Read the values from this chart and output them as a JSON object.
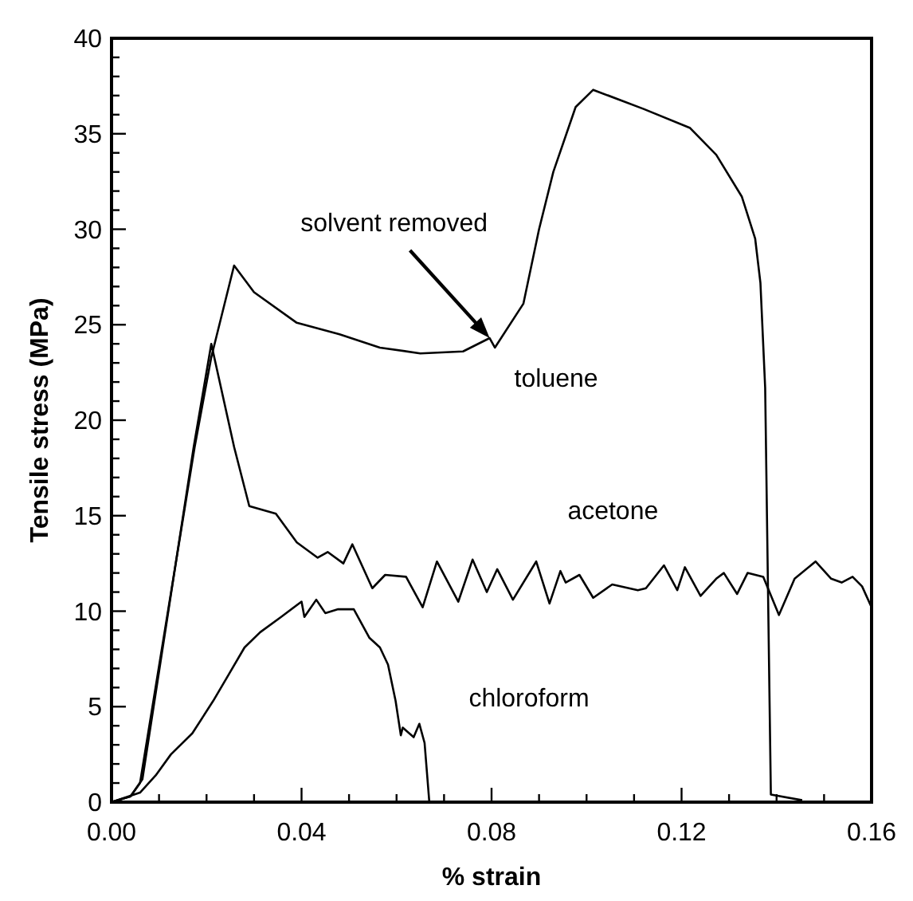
{
  "chart_data": {
    "type": "line",
    "xlabel": "% strain",
    "ylabel": "Tensile stress (MPa)",
    "xlim": [
      0,
      0.16
    ],
    "ylim": [
      0,
      40
    ],
    "xticks": [
      {
        "value": 0,
        "label": "0.00"
      },
      {
        "value": 0.01,
        "label": null
      },
      {
        "value": 0.02,
        "label": null
      },
      {
        "value": 0.03,
        "label": null
      },
      {
        "value": 0.04,
        "label": "0.04"
      },
      {
        "value": 0.05,
        "label": null
      },
      {
        "value": 0.06,
        "label": null
      },
      {
        "value": 0.07,
        "label": null
      },
      {
        "value": 0.08,
        "label": "0.08"
      },
      {
        "value": 0.09,
        "label": null
      },
      {
        "value": 0.1,
        "label": null
      },
      {
        "value": 0.11,
        "label": null
      },
      {
        "value": 0.12,
        "label": "0.12"
      },
      {
        "value": 0.13,
        "label": null
      },
      {
        "value": 0.14,
        "label": null
      },
      {
        "value": 0.15,
        "label": null
      },
      {
        "value": 0.16,
        "label": "0.16"
      }
    ],
    "yticks": [
      0,
      {
        "value": 1,
        "label": null
      },
      {
        "value": 2,
        "label": null
      },
      {
        "value": 3,
        "label": null
      },
      {
        "value": 4,
        "label": null
      },
      5,
      {
        "value": 6,
        "label": null
      },
      {
        "value": 7,
        "label": null
      },
      {
        "value": 8,
        "label": null
      },
      {
        "value": 9,
        "label": null
      },
      10,
      {
        "value": 11,
        "label": null
      },
      {
        "value": 12,
        "label": null
      },
      {
        "value": 13,
        "label": null
      },
      {
        "value": 14,
        "label": null
      },
      15,
      {
        "value": 16,
        "label": null
      },
      {
        "value": 17,
        "label": null
      },
      {
        "value": 18,
        "label": null
      },
      {
        "value": 19,
        "label": null
      },
      20,
      {
        "value": 21,
        "label": null
      },
      {
        "value": 22,
        "label": null
      },
      {
        "value": 23,
        "label": null
      },
      {
        "value": 24,
        "label": null
      },
      25,
      {
        "value": 26,
        "label": null
      },
      {
        "value": 27,
        "label": null
      },
      {
        "value": 28,
        "label": null
      },
      {
        "value": 29,
        "label": null
      },
      30,
      {
        "value": 31,
        "label": null
      },
      {
        "value": 32,
        "label": null
      },
      {
        "value": 33,
        "label": null
      },
      {
        "value": 34,
        "label": null
      },
      35,
      {
        "value": 36,
        "label": null
      },
      {
        "value": 37,
        "label": null
      },
      {
        "value": 38,
        "label": null
      },
      {
        "value": 39,
        "label": null
      },
      40
    ],
    "grid": false,
    "marker": "none",
    "line_style": "solid",
    "series": [
      {
        "name": "toluene",
        "color": "#000000",
        "x": [
          0,
          0.004,
          0.006,
          0.0175,
          0.021,
          0.0258,
          0.03,
          0.039,
          0.048,
          0.0565,
          0.065,
          0.074,
          0.0796,
          0.0807,
          0.0867,
          0.09,
          0.093,
          0.0977,
          0.1014,
          0.112,
          0.1218,
          0.1273,
          0.1327,
          0.1355,
          0.1366,
          0.1376,
          0.1388,
          0.1454
        ],
        "values": [
          0,
          0.3,
          1,
          18.6,
          23.3,
          28.1,
          26.7,
          25.1,
          24.5,
          23.8,
          23.5,
          23.6,
          24.3,
          23.8,
          26.1,
          30,
          33,
          36.4,
          37.3,
          36.3,
          35.3,
          33.9,
          31.7,
          29.5,
          27.2,
          21.7,
          0.4,
          0.1
        ]
      },
      {
        "name": "acetone",
        "color": "#000000",
        "x": [
          0,
          0.004,
          0.0065,
          0.0173,
          0.021,
          0.0258,
          0.029,
          0.0346,
          0.039,
          0.0434,
          0.0455,
          0.0488,
          0.0507,
          0.0549,
          0.0576,
          0.062,
          0.0655,
          0.0685,
          0.073,
          0.076,
          0.079,
          0.0812,
          0.0845,
          0.0894,
          0.0922,
          0.0945,
          0.0956,
          0.0985,
          0.1014,
          0.1054,
          0.1108,
          0.1125,
          0.1163,
          0.1191,
          0.1207,
          0.124,
          0.1273,
          0.1289,
          0.1317,
          0.1339,
          0.1372,
          0.1405,
          0.1438,
          0.1482,
          0.1515,
          0.1537,
          0.156,
          0.158,
          0.16
        ],
        "values": [
          0,
          0.3,
          1.2,
          18.6,
          24,
          18.6,
          15.5,
          15.1,
          13.6,
          12.8,
          13.1,
          12.5,
          13.5,
          11.2,
          11.9,
          11.8,
          10.2,
          12.6,
          10.5,
          12.7,
          11.0,
          12.2,
          10.6,
          12.6,
          10.4,
          12.1,
          11.5,
          11.9,
          10.7,
          11.4,
          11.1,
          11.2,
          12.4,
          11.1,
          12.3,
          10.8,
          11.7,
          12.0,
          10.9,
          12.0,
          11.8,
          9.8,
          11.7,
          12.6,
          11.7,
          11.5,
          11.8,
          11.3,
          10.2
        ]
      },
      {
        "name": "chloroform",
        "color": "#000000",
        "x": [
          0,
          0.006,
          0.0093,
          0.0125,
          0.017,
          0.0214,
          0.0247,
          0.028,
          0.0313,
          0.0357,
          0.04,
          0.0406,
          0.0431,
          0.045,
          0.0477,
          0.051,
          0.0543,
          0.0565,
          0.0582,
          0.0598,
          0.0609,
          0.0613,
          0.0636,
          0.0648,
          0.0659,
          0.0669
        ],
        "values": [
          0,
          0.5,
          1.4,
          2.5,
          3.6,
          5.3,
          6.7,
          8.1,
          8.9,
          9.7,
          10.5,
          9.7,
          10.6,
          9.9,
          10.1,
          10.1,
          8.6,
          8.1,
          7.2,
          5.3,
          3.5,
          3.9,
          3.4,
          4.1,
          3.1,
          0
        ]
      }
    ],
    "annotations": [
      {
        "text": "solvent removed",
        "x": 0.0796,
        "y": 24.3
      }
    ]
  }
}
